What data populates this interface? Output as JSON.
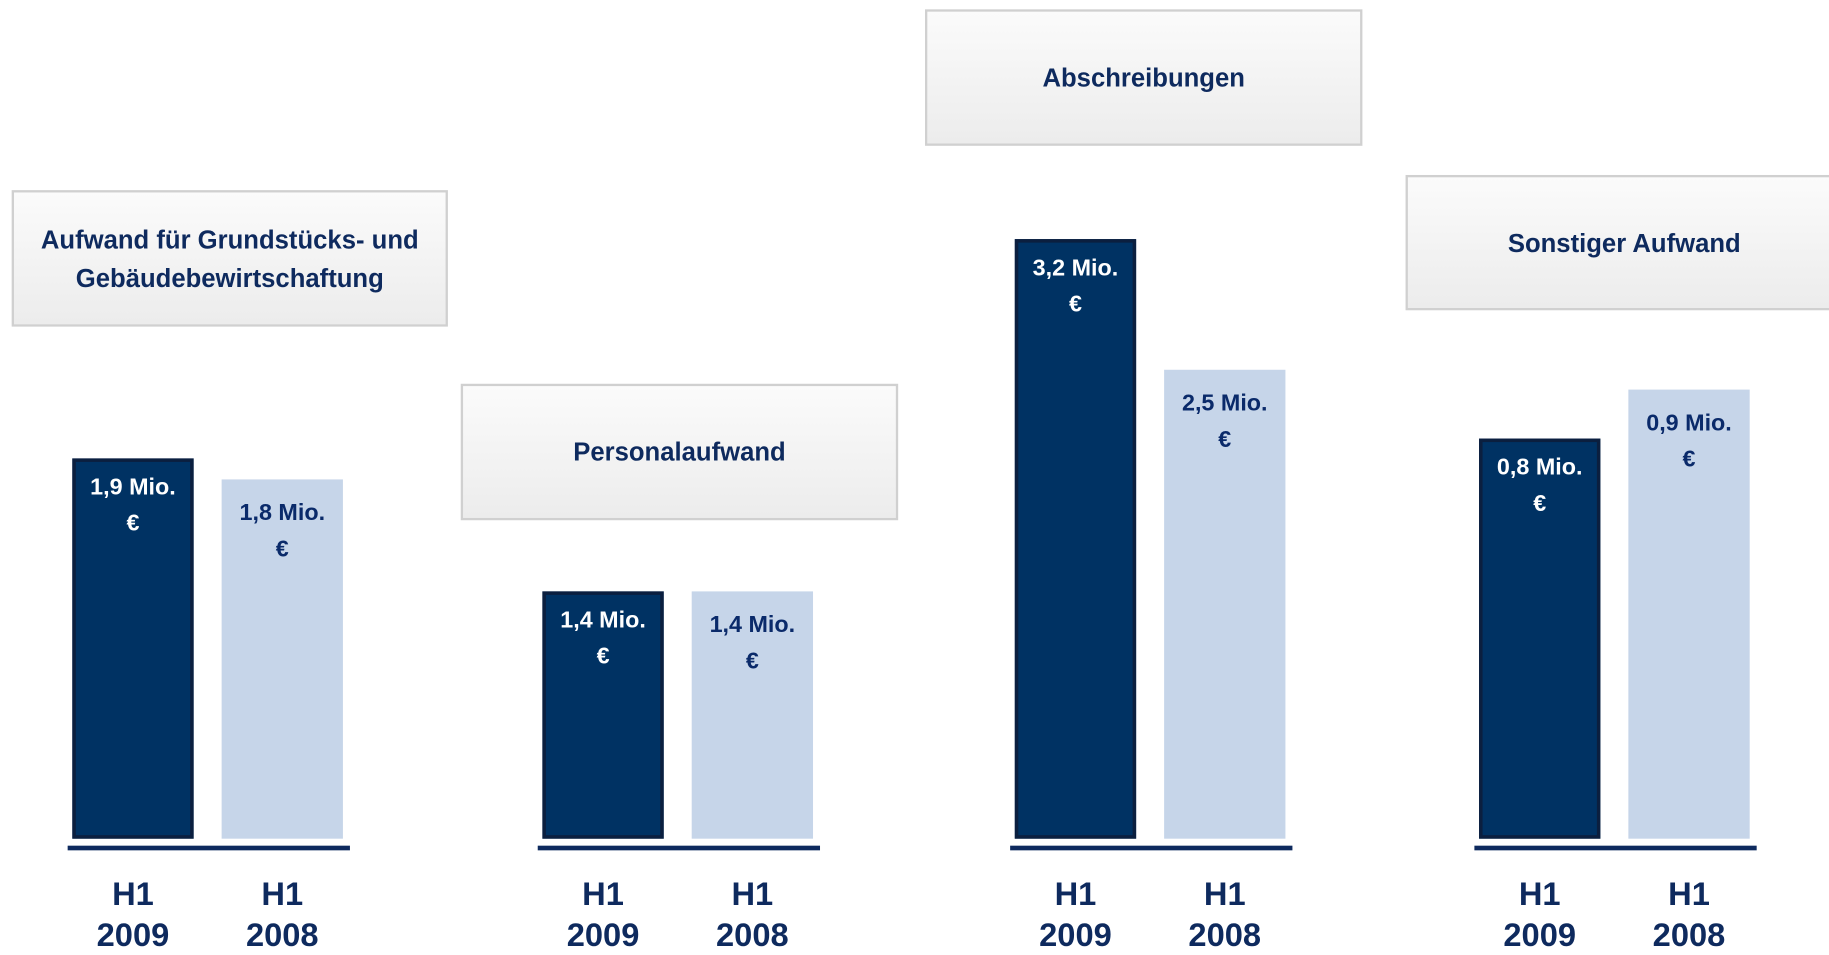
{
  "chart_data": [
    {
      "type": "bar",
      "title": "Aufwand für Grundstücks- und Gebäudebewirtschaftung",
      "categories": [
        "H1 2009",
        "H1 2008"
      ],
      "values": [
        1.9,
        1.8
      ],
      "value_labels": [
        "1,9 Mio. €",
        "1,8 Mio. €"
      ],
      "colors": [
        "#003263",
        "#c6d5e9"
      ],
      "ylim": [
        0,
        3.0
      ]
    },
    {
      "type": "bar",
      "title": "Personalaufwand",
      "categories": [
        "H1 2009",
        "H1 2008"
      ],
      "values": [
        1.4,
        1.4
      ],
      "value_labels": [
        "1,4 Mio. €",
        "1,4 Mio. €"
      ],
      "colors": [
        "#003263",
        "#c6d5e9"
      ],
      "ylim": [
        0,
        3.4
      ]
    },
    {
      "type": "bar",
      "title": "Abschreibungen",
      "categories": [
        "H1 2009",
        "H1 2008"
      ],
      "values": [
        3.2,
        2.5
      ],
      "value_labels": [
        "3,2 Mio. €",
        "2,5 Mio. €"
      ],
      "colors": [
        "#003263",
        "#c6d5e9"
      ],
      "ylim": [
        0,
        3.2
      ]
    },
    {
      "type": "bar",
      "title": "Sonstiger Aufwand",
      "categories": [
        "H1 2009",
        "H1 2008"
      ],
      "values": [
        0.8,
        0.9
      ],
      "value_labels": [
        "0,8 Mio. €",
        "0,9 Mio. €"
      ],
      "colors": [
        "#003263",
        "#c6d5e9"
      ],
      "ylim": [
        0,
        1.2
      ]
    }
  ]
}
